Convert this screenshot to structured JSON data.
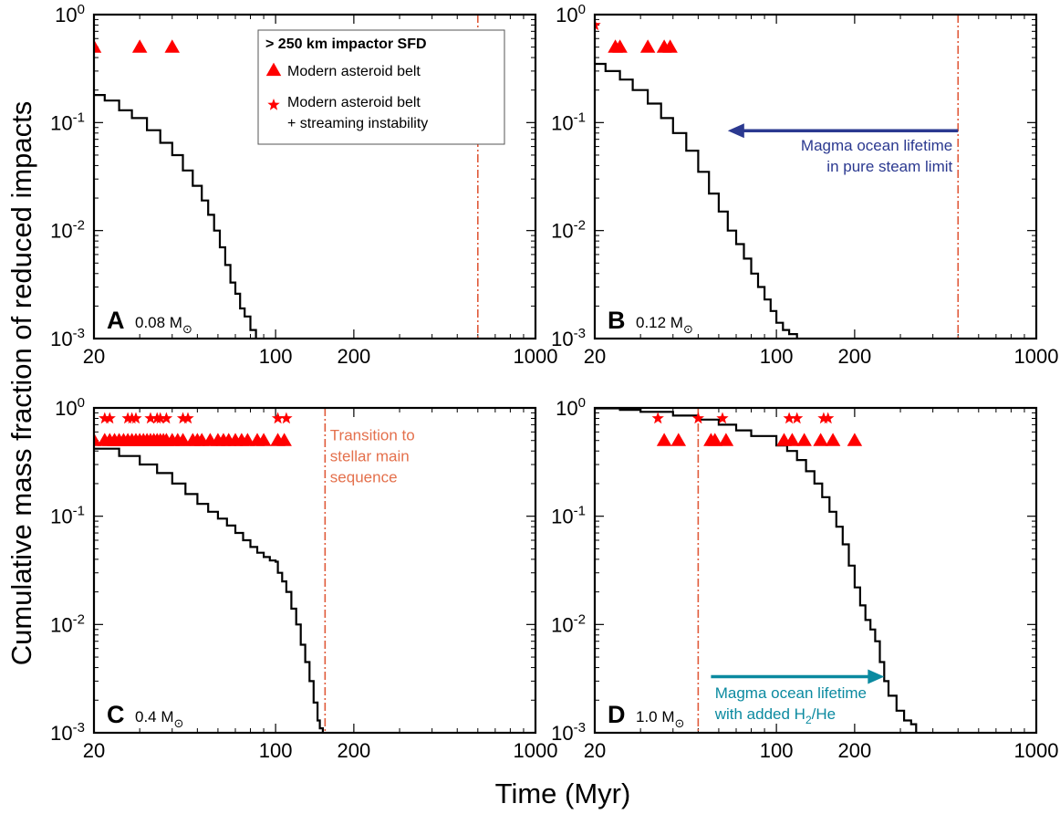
{
  "figure": {
    "ylabel": "Cumulative mass fraction of reduced impacts",
    "xlabel": "Time (Myr)"
  },
  "colors": {
    "marker": "#ff0000",
    "curve": "#000000",
    "dashed_line": "#e05a3a",
    "annot_orange": "#e4704c",
    "annot_navy": "#2b3990",
    "annot_teal": "#0b8aa0"
  },
  "legend": {
    "title": "> 250 km impactor SFD",
    "items": [
      {
        "marker": "triangle",
        "label": "Modern asteroid belt"
      },
      {
        "marker": "star",
        "label": "Modern asteroid belt",
        "label2": "+ streaming instability"
      }
    ]
  },
  "chart_data": [
    {
      "type": "line",
      "panel": "A",
      "mass_value": "0.08",
      "mass_unit": "M",
      "mass_symbol": "⊙",
      "x_scale": "log",
      "y_scale": "log",
      "xlim": [
        20,
        1000
      ],
      "ylim": [
        0.001,
        1
      ],
      "xticks": [
        {
          "v": 20,
          "label": "20"
        },
        {
          "v": 100,
          "label": "100"
        },
        {
          "v": 200,
          "label": "200"
        },
        {
          "v": 1000,
          "label": "1000"
        }
      ],
      "yticks": [
        {
          "v": 1,
          "base": "10",
          "exp": "0"
        },
        {
          "v": 0.1,
          "base": "10",
          "exp": "-1"
        },
        {
          "v": 0.01,
          "base": "10",
          "exp": "-2"
        },
        {
          "v": 0.001,
          "base": "10",
          "exp": "-3"
        }
      ],
      "curve": [
        [
          20,
          0.18
        ],
        [
          22,
          0.16
        ],
        [
          25,
          0.13
        ],
        [
          28,
          0.11
        ],
        [
          32,
          0.085
        ],
        [
          36,
          0.065
        ],
        [
          40,
          0.05
        ],
        [
          44,
          0.036
        ],
        [
          48,
          0.026
        ],
        [
          52,
          0.019
        ],
        [
          55,
          0.014
        ],
        [
          58,
          0.01
        ],
        [
          61,
          0.007
        ],
        [
          64,
          0.0048
        ],
        [
          67,
          0.0033
        ],
        [
          70,
          0.0026
        ],
        [
          73,
          0.0019
        ],
        [
          76,
          0.0016
        ],
        [
          80,
          0.0012
        ],
        [
          84,
          0.001
        ]
      ],
      "vline_x": 600,
      "triangles": {
        "y": 0.5,
        "x": [
          20,
          30,
          40
        ]
      },
      "stars": {
        "y": 0.8,
        "x": []
      }
    },
    {
      "type": "line",
      "panel": "B",
      "mass_value": "0.12",
      "mass_unit": "M",
      "mass_symbol": "⊙",
      "x_scale": "log",
      "y_scale": "log",
      "xlim": [
        20,
        1000
      ],
      "ylim": [
        0.001,
        1
      ],
      "xticks": [
        {
          "v": 20,
          "label": "20"
        },
        {
          "v": 100,
          "label": "100"
        },
        {
          "v": 200,
          "label": "200"
        },
        {
          "v": 1000,
          "label": "1000"
        }
      ],
      "yticks": [
        {
          "v": 1,
          "base": "10",
          "exp": "0"
        },
        {
          "v": 0.1,
          "base": "10",
          "exp": "-1"
        },
        {
          "v": 0.01,
          "base": "10",
          "exp": "-2"
        },
        {
          "v": 0.001,
          "base": "10",
          "exp": "-3"
        }
      ],
      "curve": [
        [
          20,
          0.35
        ],
        [
          22,
          0.3
        ],
        [
          25,
          0.25
        ],
        [
          28,
          0.2
        ],
        [
          32,
          0.15
        ],
        [
          36,
          0.11
        ],
        [
          40,
          0.08
        ],
        [
          45,
          0.055
        ],
        [
          50,
          0.035
        ],
        [
          55,
          0.022
        ],
        [
          60,
          0.015
        ],
        [
          65,
          0.01
        ],
        [
          70,
          0.0075
        ],
        [
          75,
          0.0055
        ],
        [
          80,
          0.004
        ],
        [
          85,
          0.003
        ],
        [
          90,
          0.0023
        ],
        [
          95,
          0.0018
        ],
        [
          100,
          0.0014
        ],
        [
          106,
          0.0012
        ],
        [
          112,
          0.0011
        ],
        [
          120,
          0.001
        ]
      ],
      "vline_x": 500,
      "triangles": {
        "y": 0.5,
        "x": [
          24,
          25,
          32,
          37,
          39
        ]
      },
      "stars": {
        "y": 0.8,
        "x": [
          20
        ]
      },
      "arrow": {
        "from": 500,
        "to": 65,
        "y": 0.084,
        "color_key": "annot_navy"
      },
      "annotation": {
        "lines": [
          "Magma ocean lifetime",
          "in pure steam limit"
        ],
        "color_key": "annot_navy",
        "x": 500,
        "y": 0.055,
        "anchor": "end"
      }
    },
    {
      "type": "line",
      "panel": "C",
      "mass_value": "0.4",
      "mass_unit": "M",
      "mass_symbol": "⊙",
      "x_scale": "log",
      "y_scale": "log",
      "xlim": [
        20,
        1000
      ],
      "ylim": [
        0.001,
        1
      ],
      "xticks": [
        {
          "v": 20,
          "label": "20"
        },
        {
          "v": 100,
          "label": "100"
        },
        {
          "v": 200,
          "label": "200"
        },
        {
          "v": 1000,
          "label": "1000"
        }
      ],
      "yticks": [
        {
          "v": 1,
          "base": "10",
          "exp": "0"
        },
        {
          "v": 0.1,
          "base": "10",
          "exp": "-1"
        },
        {
          "v": 0.01,
          "base": "10",
          "exp": "-2"
        },
        {
          "v": 0.001,
          "base": "10",
          "exp": "-3"
        }
      ],
      "curve": [
        [
          20,
          0.42
        ],
        [
          25,
          0.36
        ],
        [
          30,
          0.3
        ],
        [
          35,
          0.25
        ],
        [
          40,
          0.2
        ],
        [
          45,
          0.16
        ],
        [
          50,
          0.13
        ],
        [
          55,
          0.11
        ],
        [
          60,
          0.095
        ],
        [
          65,
          0.082
        ],
        [
          70,
          0.07
        ],
        [
          75,
          0.06
        ],
        [
          80,
          0.052
        ],
        [
          85,
          0.046
        ],
        [
          90,
          0.042
        ],
        [
          95,
          0.039
        ],
        [
          100,
          0.038
        ],
        [
          102,
          0.03
        ],
        [
          106,
          0.025
        ],
        [
          110,
          0.02
        ],
        [
          115,
          0.014
        ],
        [
          120,
          0.01
        ],
        [
          125,
          0.0065
        ],
        [
          130,
          0.0045
        ],
        [
          135,
          0.003
        ],
        [
          140,
          0.0019
        ],
        [
          145,
          0.0013
        ],
        [
          148,
          0.0011
        ],
        [
          152,
          0.001
        ]
      ],
      "vline_x": 155,
      "triangles": {
        "y": 0.5,
        "x": [
          20,
          22,
          23,
          24,
          25,
          26,
          27,
          28,
          29,
          30,
          31,
          32,
          33,
          34,
          35,
          36,
          37,
          38,
          40,
          42,
          44,
          48,
          50,
          52,
          56,
          60,
          63,
          66,
          70,
          74,
          78,
          85,
          90,
          102,
          108
        ]
      },
      "stars": {
        "y": 0.8,
        "x": [
          22,
          23,
          27,
          28,
          29,
          33,
          35,
          36,
          38,
          44,
          46,
          102,
          110
        ]
      },
      "annotation": {
        "lines": [
          "Transition to",
          "stellar main",
          "sequence"
        ],
        "color_key": "annot_orange",
        "x": 162,
        "y": 0.5,
        "anchor": "start"
      }
    },
    {
      "type": "line",
      "panel": "D",
      "mass_value": "1.0",
      "mass_unit": "M",
      "mass_symbol": "⊙",
      "x_scale": "log",
      "y_scale": "log",
      "xlim": [
        20,
        1000
      ],
      "ylim": [
        0.001,
        1
      ],
      "xticks": [
        {
          "v": 20,
          "label": "20"
        },
        {
          "v": 100,
          "label": "100"
        },
        {
          "v": 200,
          "label": "200"
        },
        {
          "v": 1000,
          "label": "1000"
        }
      ],
      "yticks": [
        {
          "v": 1,
          "base": "10",
          "exp": "0"
        },
        {
          "v": 0.1,
          "base": "10",
          "exp": "-1"
        },
        {
          "v": 0.01,
          "base": "10",
          "exp": "-2"
        },
        {
          "v": 0.001,
          "base": "10",
          "exp": "-3"
        }
      ],
      "curve": [
        [
          20,
          0.99
        ],
        [
          25,
          0.96
        ],
        [
          30,
          0.92
        ],
        [
          40,
          0.85
        ],
        [
          50,
          0.78
        ],
        [
          60,
          0.7
        ],
        [
          70,
          0.62
        ],
        [
          80,
          0.55
        ],
        [
          100,
          0.45
        ],
        [
          110,
          0.4
        ],
        [
          120,
          0.33
        ],
        [
          130,
          0.26
        ],
        [
          140,
          0.2
        ],
        [
          150,
          0.15
        ],
        [
          160,
          0.11
        ],
        [
          170,
          0.08
        ],
        [
          180,
          0.055
        ],
        [
          190,
          0.035
        ],
        [
          200,
          0.022
        ],
        [
          210,
          0.015
        ],
        [
          220,
          0.011
        ],
        [
          230,
          0.009
        ],
        [
          240,
          0.007
        ],
        [
          250,
          0.0045
        ],
        [
          260,
          0.003
        ],
        [
          270,
          0.0022
        ],
        [
          290,
          0.0016
        ],
        [
          310,
          0.0013
        ],
        [
          330,
          0.0012
        ],
        [
          345,
          0.001
        ]
      ],
      "vline_x": 50,
      "triangles": {
        "y": 0.5,
        "x": [
          37,
          42,
          56,
          58,
          64,
          107,
          115,
          128,
          148,
          165,
          200
        ]
      },
      "stars": {
        "y": 0.8,
        "x": [
          35,
          50,
          62,
          112,
          120,
          152,
          158
        ]
      },
      "arrow": {
        "from": 56,
        "to": 260,
        "y": 0.0033,
        "color_key": "annot_teal"
      },
      "annotation": {
        "lines": [
          "Magma ocean lifetime",
          "with added H"
        ],
        "sub": "2",
        "tail": "/He",
        "color_key": "annot_teal",
        "x": 58,
        "y": 0.0021,
        "anchor": "start"
      }
    }
  ]
}
